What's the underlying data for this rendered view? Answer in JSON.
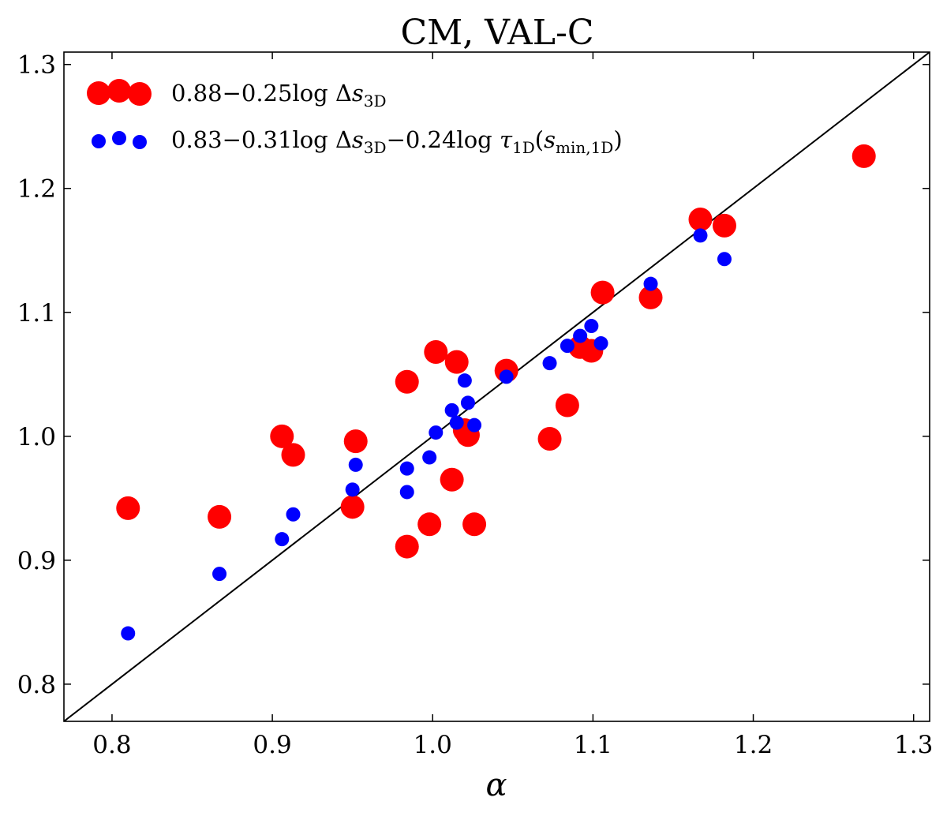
{
  "chart_data": {
    "type": "scatter",
    "title": "CM, VAL-C",
    "xlabel": "α",
    "ylabel": "",
    "xlim": [
      0.77,
      1.31
    ],
    "ylim": [
      0.77,
      1.31
    ],
    "xticks": [
      0.8,
      0.9,
      1.0,
      1.1,
      1.2,
      1.3
    ],
    "yticks": [
      0.8,
      0.9,
      1.0,
      1.1,
      1.2,
      1.3
    ],
    "xtick_labels": [
      "0.8",
      "0.9",
      "1.0",
      "1.1",
      "1.2",
      "1.3"
    ],
    "ytick_labels": [
      "0.8",
      "0.9",
      "1.0",
      "1.1",
      "1.2",
      "1.3"
    ],
    "grid": false,
    "legend_position": "top-left",
    "reference_line": "y = x",
    "series": [
      {
        "name": "0.88−0.25log Δs3D",
        "legend_parts": {
          "main": "0.88−0.25log Δ",
          "var": "s",
          "sub": "3D"
        },
        "color": "#ff0000",
        "marker": "large-circle",
        "points": [
          [
            0.81,
            0.942
          ],
          [
            0.867,
            0.935
          ],
          [
            0.906,
            1.0
          ],
          [
            0.913,
            0.985
          ],
          [
            0.95,
            0.943
          ],
          [
            0.952,
            0.996
          ],
          [
            0.984,
            1.044
          ],
          [
            0.984,
            0.911
          ],
          [
            0.998,
            0.929
          ],
          [
            1.002,
            1.068
          ],
          [
            1.012,
            0.965
          ],
          [
            1.015,
            1.06
          ],
          [
            1.02,
            1.005
          ],
          [
            1.022,
            1.001
          ],
          [
            1.026,
            0.929
          ],
          [
            1.046,
            1.053
          ],
          [
            1.073,
            0.998
          ],
          [
            1.084,
            1.025
          ],
          [
            1.092,
            1.072
          ],
          [
            1.099,
            1.069
          ],
          [
            1.106,
            1.116
          ],
          [
            1.136,
            1.112
          ],
          [
            1.167,
            1.175
          ],
          [
            1.182,
            1.17
          ],
          [
            1.269,
            1.226
          ]
        ]
      },
      {
        "name": "0.83−0.31log Δs3D−0.24log τ1D(smin,1D)",
        "legend_parts": {
          "main1": "0.83−0.31log Δ",
          "var1": "s",
          "sub1": "3D",
          "main2": "−0.24log ",
          "var2": "τ",
          "sub2": "1D",
          "paren_open": "(",
          "var3": "s",
          "sub3": "min,1D",
          "paren_close": ")"
        },
        "color": "#0000ff",
        "marker": "small-circle",
        "points": [
          [
            0.81,
            0.841
          ],
          [
            0.867,
            0.889
          ],
          [
            0.906,
            0.917
          ],
          [
            0.913,
            0.937
          ],
          [
            0.95,
            0.957
          ],
          [
            0.952,
            0.977
          ],
          [
            0.984,
            0.974
          ],
          [
            0.984,
            0.955
          ],
          [
            0.998,
            0.983
          ],
          [
            1.002,
            1.003
          ],
          [
            1.012,
            1.021
          ],
          [
            1.015,
            1.011
          ],
          [
            1.02,
            1.045
          ],
          [
            1.022,
            1.027
          ],
          [
            1.026,
            1.009
          ],
          [
            1.046,
            1.048
          ],
          [
            1.073,
            1.059
          ],
          [
            1.084,
            1.073
          ],
          [
            1.092,
            1.081
          ],
          [
            1.099,
            1.089
          ],
          [
            1.105,
            1.075
          ],
          [
            1.136,
            1.123
          ],
          [
            1.167,
            1.162
          ],
          [
            1.182,
            1.143
          ]
        ]
      }
    ]
  }
}
